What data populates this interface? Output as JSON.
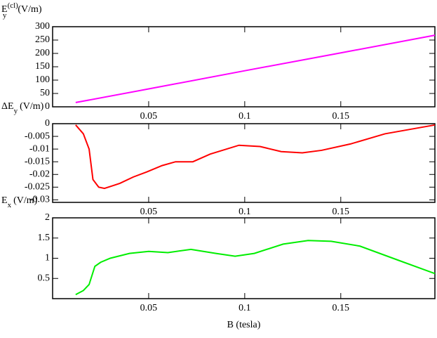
{
  "chart_data": [
    {
      "type": "line",
      "ylabel": {
        "base": "E",
        "sub": "y",
        "sup": "(cl)",
        "unit": "(V/m)"
      },
      "x": [
        0.012,
        0.05,
        0.1,
        0.15,
        0.199
      ],
      "series": [
        {
          "color": "#ff00ff",
          "values": [
            16,
            67,
            135,
            202,
            268
          ]
        }
      ],
      "xlim": [
        0,
        0.199
      ],
      "ylim": [
        0,
        300
      ],
      "xticks": [
        0.05,
        0.1,
        0.15
      ],
      "yticks": [
        0,
        50,
        100,
        150,
        200,
        250,
        300
      ]
    },
    {
      "type": "line",
      "ylabel": {
        "base": "ΔE",
        "sub": "y",
        "unit": "(V/m)"
      },
      "x": [
        0.012,
        0.016,
        0.019,
        0.021,
        0.024,
        0.027,
        0.031,
        0.035,
        0.042,
        0.049,
        0.057,
        0.064,
        0.073,
        0.082,
        0.097,
        0.108,
        0.119,
        0.13,
        0.14,
        0.155,
        0.173,
        0.199
      ],
      "series": [
        {
          "color": "#ff0000",
          "values": [
            -0.0005,
            -0.004,
            -0.01,
            -0.022,
            -0.025,
            -0.0255,
            -0.0245,
            -0.0235,
            -0.021,
            -0.019,
            -0.0165,
            -0.015,
            -0.015,
            -0.012,
            -0.0085,
            -0.009,
            -0.011,
            -0.0115,
            -0.0105,
            -0.008,
            -0.004,
            -0.0005
          ]
        }
      ],
      "xlim": [
        0,
        0.199
      ],
      "ylim": [
        -0.031,
        0
      ],
      "xticks": [
        0.05,
        0.1,
        0.15
      ],
      "yticks": [
        -0.03,
        -0.025,
        -0.02,
        -0.015,
        -0.01,
        -0.005,
        0
      ]
    },
    {
      "type": "line",
      "ylabel": {
        "base": "E",
        "sub": "x",
        "unit": "(V/m)"
      },
      "xlabel": "B (tesla)",
      "x": [
        0.012,
        0.016,
        0.019,
        0.022,
        0.025,
        0.03,
        0.04,
        0.05,
        0.06,
        0.072,
        0.085,
        0.095,
        0.105,
        0.12,
        0.133,
        0.145,
        0.16,
        0.18,
        0.199
      ],
      "series": [
        {
          "color": "#00ee00",
          "values": [
            0.1,
            0.2,
            0.35,
            0.8,
            0.9,
            1.0,
            1.12,
            1.17,
            1.14,
            1.22,
            1.12,
            1.05,
            1.12,
            1.35,
            1.44,
            1.42,
            1.3,
            0.95,
            0.62
          ]
        }
      ],
      "xlim": [
        0,
        0.199
      ],
      "ylim": [
        0,
        2
      ],
      "xticks": [
        0.05,
        0.1,
        0.15
      ],
      "yticks": [
        0.5,
        1,
        1.5,
        2
      ]
    }
  ]
}
